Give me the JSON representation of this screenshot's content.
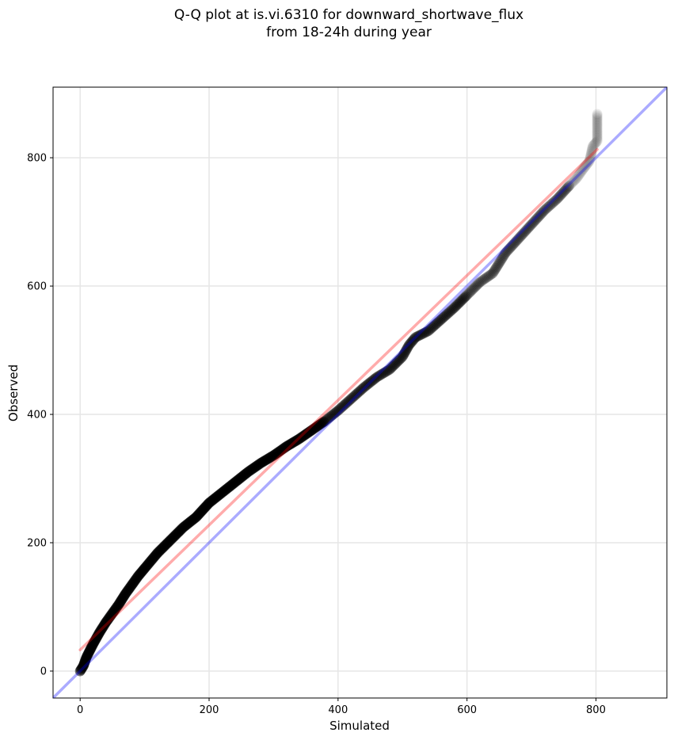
{
  "chart_data": {
    "type": "scatter",
    "title_lines": [
      "Q-Q plot at is.vi.6310 for downward_shortwave_flux",
      "from 18-24h during year"
    ],
    "xlabel": "Simulated",
    "ylabel": "Observed",
    "xlim": [
      -42,
      910
    ],
    "ylim": [
      -42,
      910
    ],
    "xticks": [
      0,
      200,
      400,
      600,
      800
    ],
    "yticks": [
      0,
      200,
      400,
      600,
      800
    ],
    "grid": true,
    "reference_lines": [
      {
        "kind": "identity",
        "color": "#0000ff",
        "alpha": 0.33,
        "points": [
          [
            -42,
            -42
          ],
          [
            910,
            910
          ]
        ]
      },
      {
        "kind": "fit",
        "color": "#ff0000",
        "alpha": 0.33,
        "points": [
          [
            0,
            33
          ],
          [
            802,
            813
          ]
        ]
      }
    ],
    "qq_curve": [
      [
        0,
        0
      ],
      [
        5,
        8
      ],
      [
        10,
        22
      ],
      [
        20,
        42
      ],
      [
        30,
        60
      ],
      [
        40,
        76
      ],
      [
        50,
        90
      ],
      [
        60,
        104
      ],
      [
        70,
        120
      ],
      [
        80,
        134
      ],
      [
        90,
        148
      ],
      [
        100,
        160
      ],
      [
        120,
        184
      ],
      [
        140,
        204
      ],
      [
        160,
        224
      ],
      [
        180,
        240
      ],
      [
        200,
        262
      ],
      [
        220,
        278
      ],
      [
        240,
        294
      ],
      [
        260,
        310
      ],
      [
        280,
        324
      ],
      [
        300,
        336
      ],
      [
        320,
        350
      ],
      [
        340,
        362
      ],
      [
        360,
        376
      ],
      [
        380,
        390
      ],
      [
        400,
        406
      ],
      [
        420,
        424
      ],
      [
        440,
        442
      ],
      [
        460,
        458
      ],
      [
        480,
        470
      ],
      [
        500,
        490
      ],
      [
        510,
        508
      ],
      [
        520,
        520
      ],
      [
        540,
        530
      ],
      [
        560,
        548
      ],
      [
        580,
        566
      ],
      [
        600,
        586
      ],
      [
        620,
        606
      ],
      [
        640,
        620
      ],
      [
        650,
        636
      ],
      [
        660,
        652
      ],
      [
        680,
        674
      ],
      [
        700,
        696
      ],
      [
        720,
        718
      ],
      [
        740,
        736
      ],
      [
        760,
        758
      ],
      [
        770,
        768
      ],
      [
        780,
        782
      ],
      [
        790,
        795
      ],
      [
        795,
        818
      ],
      [
        802,
        826
      ],
      [
        802,
        868
      ]
    ],
    "point_color": "#000000"
  }
}
